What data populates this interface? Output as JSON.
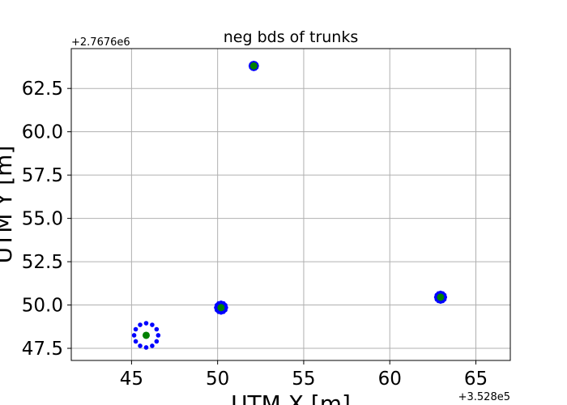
{
  "chart_data": {
    "type": "scatter",
    "title": "neg bds of trunks",
    "xlabel": "UTM X [m]",
    "ylabel": "UTM Y [m]",
    "x_offset_label": "+3.528e5",
    "y_offset_label": "+2.7676e6",
    "xlim": [
      41.5,
      67
    ],
    "ylim": [
      46.8,
      64.8
    ],
    "x_ticks": [
      45,
      50,
      55,
      60,
      65
    ],
    "x_tick_labels": [
      "45",
      "50",
      "55",
      "60",
      "65"
    ],
    "y_ticks": [
      47.5,
      50.0,
      52.5,
      55.0,
      57.5,
      60.0,
      62.5
    ],
    "y_tick_labels": [
      "47.5",
      "50.0",
      "52.5",
      "55.0",
      "57.5",
      "60.0",
      "62.5"
    ],
    "grid": true,
    "colors": {
      "boundary": "#0000ff",
      "center": "#008000",
      "grid": "#b0b0b0",
      "axes": "#000000"
    },
    "trunks": [
      {
        "center": [
          45.85,
          48.25
        ],
        "radius": 0.7
      },
      {
        "center": [
          50.2,
          49.85
        ],
        "radius": 0.28
      },
      {
        "center": [
          52.1,
          63.8
        ],
        "radius": 0.17
      },
      {
        "center": [
          62.95,
          50.45
        ],
        "radius": 0.25
      }
    ],
    "points_per_trunk": 12
  }
}
